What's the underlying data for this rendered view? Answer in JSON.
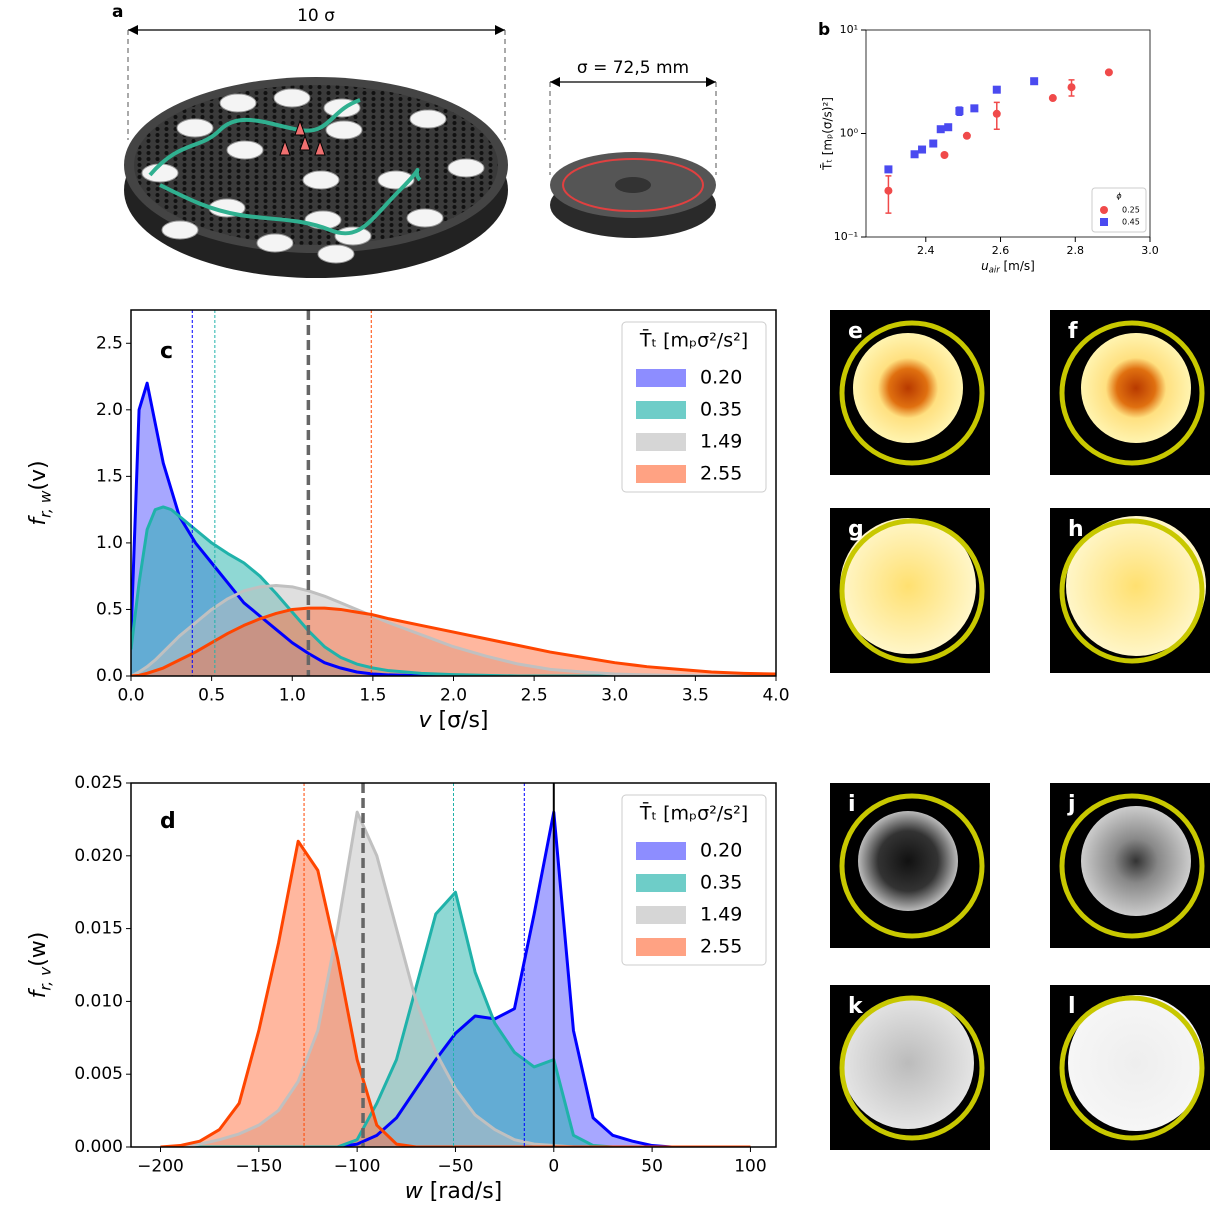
{
  "illustration": {
    "label": "a",
    "width_label": "10 σ",
    "sigma_label": "σ = 72,5 mm"
  },
  "heatmaps": {
    "labels": [
      "e",
      "f",
      "g",
      "h",
      "i",
      "j",
      "k",
      "l"
    ]
  },
  "chart_data": [
    {
      "type": "scatter",
      "panel": "b",
      "log_y": true,
      "xlabel": {
        "main": "u",
        "sub": "air",
        "rest": " [m/s]"
      },
      "ylabel": "T̄ₜ [mₚ(σ/s)²]",
      "xlim": [
        2.24,
        3.0
      ],
      "xticks": [
        2.4,
        2.6,
        2.8,
        {
          "value": 3.0,
          "label": "3.0"
        }
      ],
      "ylim": [
        0.1,
        10
      ],
      "yticks": [
        {
          "value": 0.1,
          "label": "10⁻¹"
        },
        {
          "value": 1,
          "label": "10⁰"
        },
        {
          "value": 10,
          "label": "10¹"
        }
      ],
      "legend": "lower right",
      "legend_title": "ϕ",
      "series": [
        {
          "name": "0.25",
          "color": "#f04a4a",
          "marker": "o",
          "x": [
            2.3,
            2.45,
            2.51,
            2.59,
            2.74,
            2.79,
            2.89
          ],
          "values": [
            0.28,
            0.62,
            0.95,
            1.55,
            2.2,
            2.8,
            3.9
          ],
          "errors": [
            0.11,
            null,
            null,
            0.45,
            null,
            0.5,
            null
          ]
        },
        {
          "name": "0.45",
          "color": "#4a4af0",
          "marker": "s",
          "x": [
            2.3,
            2.37,
            2.39,
            2.42,
            2.44,
            2.46,
            2.49,
            2.53,
            2.59,
            2.69
          ],
          "values": [
            0.45,
            0.63,
            0.7,
            0.8,
            1.1,
            1.15,
            1.65,
            1.75,
            2.65,
            3.2
          ],
          "errors": [
            null,
            null,
            null,
            null,
            null,
            null,
            0.15,
            null,
            null,
            0.2
          ]
        }
      ]
    },
    {
      "type": "area",
      "panel": "c",
      "xlabel": {
        "main": "v",
        "rest": " [σ/s]"
      },
      "ylabel": {
        "main": "f",
        "sub": "r, w",
        "rest": "(v)"
      },
      "xlim": [
        0,
        4
      ],
      "xticks": [
        {
          "value": 0,
          "label": "0.0"
        },
        0.5,
        {
          "value": 1,
          "label": "1.0"
        },
        1.5,
        {
          "value": 2,
          "label": "2.0"
        },
        2.5,
        {
          "value": 3,
          "label": "3.0"
        },
        3.5,
        {
          "value": 4,
          "label": "4.0"
        }
      ],
      "ylim": [
        0,
        2.75
      ],
      "yticks": [
        {
          "value": 0,
          "label": "0.0"
        },
        0.5,
        {
          "value": 1,
          "label": "1.0"
        },
        1.5,
        {
          "value": 2,
          "label": "2.0"
        },
        2.5
      ],
      "legend": "upper right",
      "legend_title": "T̄ₜ [mₚσ²/s²]",
      "x": [
        0,
        0.05,
        0.1,
        0.15,
        0.2,
        0.25,
        0.3,
        0.4,
        0.5,
        0.6,
        0.7,
        0.8,
        0.9,
        1.0,
        1.1,
        1.2,
        1.3,
        1.4,
        1.5,
        1.6,
        1.8,
        2.0,
        2.2,
        2.4,
        2.6,
        2.8,
        3.0,
        3.2,
        3.4,
        3.6,
        3.8,
        4.0
      ],
      "series": [
        {
          "name": "0.20",
          "color": "#0000ff",
          "fill": "#5050ff",
          "mean": 0.38,
          "mean_color": "#0000ff",
          "values": [
            0.3,
            2.0,
            2.2,
            1.9,
            1.6,
            1.4,
            1.2,
            1.0,
            0.85,
            0.7,
            0.55,
            0.45,
            0.35,
            0.25,
            0.17,
            0.1,
            0.06,
            0.03,
            0.015,
            0.008,
            0.002,
            0,
            0,
            0,
            0,
            0,
            0,
            0,
            0,
            0,
            0,
            0
          ]
        },
        {
          "name": "0.35",
          "color": "#20b2aa",
          "fill": "#20b2aa",
          "mean": 0.52,
          "mean_color": "#20b2aa",
          "values": [
            0.2,
            0.7,
            1.1,
            1.25,
            1.27,
            1.25,
            1.2,
            1.1,
            1.0,
            0.92,
            0.85,
            0.75,
            0.62,
            0.48,
            0.34,
            0.22,
            0.14,
            0.09,
            0.06,
            0.04,
            0.02,
            0.01,
            0.005,
            0,
            0,
            0,
            0,
            0,
            0,
            0,
            0,
            0
          ]
        },
        {
          "name": "1.49",
          "color": "#c0c0c0",
          "fill": "#c0c0c0",
          "mean": 1.1,
          "mean_color": "#666666",
          "mean_width": 3.5,
          "values": [
            0,
            0.03,
            0.07,
            0.12,
            0.18,
            0.24,
            0.3,
            0.4,
            0.5,
            0.58,
            0.64,
            0.67,
            0.68,
            0.67,
            0.64,
            0.6,
            0.55,
            0.5,
            0.45,
            0.4,
            0.31,
            0.22,
            0.15,
            0.09,
            0.05,
            0.03,
            0.015,
            0.008,
            0.004,
            0.002,
            0.001,
            0
          ]
        },
        {
          "name": "2.55",
          "color": "#ff4500",
          "fill": "#ff7040",
          "mean": 1.49,
          "mean_color": "#ff4500",
          "values": [
            0,
            0.005,
            0.02,
            0.04,
            0.06,
            0.09,
            0.12,
            0.18,
            0.25,
            0.32,
            0.38,
            0.43,
            0.47,
            0.5,
            0.51,
            0.51,
            0.5,
            0.48,
            0.46,
            0.43,
            0.38,
            0.33,
            0.28,
            0.23,
            0.18,
            0.14,
            0.1,
            0.07,
            0.05,
            0.03,
            0.02,
            0.015
          ]
        }
      ]
    },
    {
      "type": "area",
      "panel": "d",
      "xlabel": {
        "main": "w",
        "rest": " [rad/s]"
      },
      "ylabel": {
        "main": "f",
        "sub": "r, v",
        "rest": "(w)"
      },
      "xlim": [
        -215,
        113
      ],
      "xticks": [
        {
          "value": -200,
          "label": "−200"
        },
        {
          "value": -150,
          "label": "−150"
        },
        {
          "value": -100,
          "label": "−100"
        },
        {
          "value": -50,
          "label": "−50"
        },
        0,
        50,
        100
      ],
      "ylim": [
        0,
        0.025
      ],
      "yticks": [
        {
          "value": 0,
          "label": "0.000"
        },
        0.005,
        {
          "value": 0.01,
          "label": "0.010"
        },
        0.015,
        {
          "value": 0.02,
          "label": "0.020"
        },
        0.025
      ],
      "legend": "upper right",
      "legend_title": "T̄ₜ [mₚσ²/s²]",
      "axvline": 0,
      "x": [
        -200,
        -190,
        -180,
        -170,
        -160,
        -150,
        -140,
        -130,
        -120,
        -110,
        -100,
        -90,
        -80,
        -70,
        -60,
        -50,
        -40,
        -30,
        -20,
        -10,
        0,
        10,
        20,
        30,
        40,
        50,
        60,
        70,
        80,
        90,
        100
      ],
      "series": [
        {
          "name": "0.20",
          "color": "#0000ff",
          "fill": "#5050ff",
          "mean": -15,
          "mean_color": "#0000ff",
          "values": [
            0,
            0,
            0,
            0,
            0,
            0,
            0,
            0,
            0,
            0,
            0.0002,
            0.0008,
            0.002,
            0.004,
            0.006,
            0.0078,
            0.009,
            0.0088,
            0.0095,
            0.016,
            0.023,
            0.008,
            0.002,
            0.0008,
            0.0004,
            0.0001,
            0,
            0,
            0,
            0,
            0
          ]
        },
        {
          "name": "0.35",
          "color": "#20b2aa",
          "fill": "#20b2aa",
          "mean": -51,
          "mean_color": "#20b2aa",
          "values": [
            0,
            0,
            0,
            0,
            0,
            0,
            0,
            0,
            0,
            0,
            0.0005,
            0.003,
            0.006,
            0.011,
            0.016,
            0.0175,
            0.012,
            0.0085,
            0.0065,
            0.0055,
            0.006,
            0.0008,
            0.0001,
            0,
            0,
            0,
            0,
            0,
            0,
            0,
            0
          ]
        },
        {
          "name": "1.49",
          "color": "#c0c0c0",
          "fill": "#c0c0c0",
          "mean": -97,
          "mean_color": "#666666",
          "mean_width": 3.5,
          "values": [
            0,
            0,
            0.0002,
            0.0005,
            0.0009,
            0.0015,
            0.0025,
            0.0045,
            0.008,
            0.015,
            0.023,
            0.02,
            0.015,
            0.01,
            0.0065,
            0.004,
            0.0022,
            0.0012,
            0.0005,
            0.0002,
            0.0001,
            0,
            0,
            0,
            0,
            0,
            0,
            0,
            0,
            0,
            0
          ]
        },
        {
          "name": "2.55",
          "color": "#ff4500",
          "fill": "#ff7040",
          "mean": -127,
          "mean_color": "#ff4500",
          "values": [
            0,
            0.0001,
            0.0004,
            0.0012,
            0.003,
            0.008,
            0.014,
            0.021,
            0.019,
            0.013,
            0.006,
            0.0015,
            0.0002,
            0,
            0,
            0,
            0,
            0,
            0,
            0,
            0,
            0,
            0,
            0,
            0,
            0,
            0,
            0,
            0,
            0,
            0
          ]
        }
      ]
    }
  ]
}
